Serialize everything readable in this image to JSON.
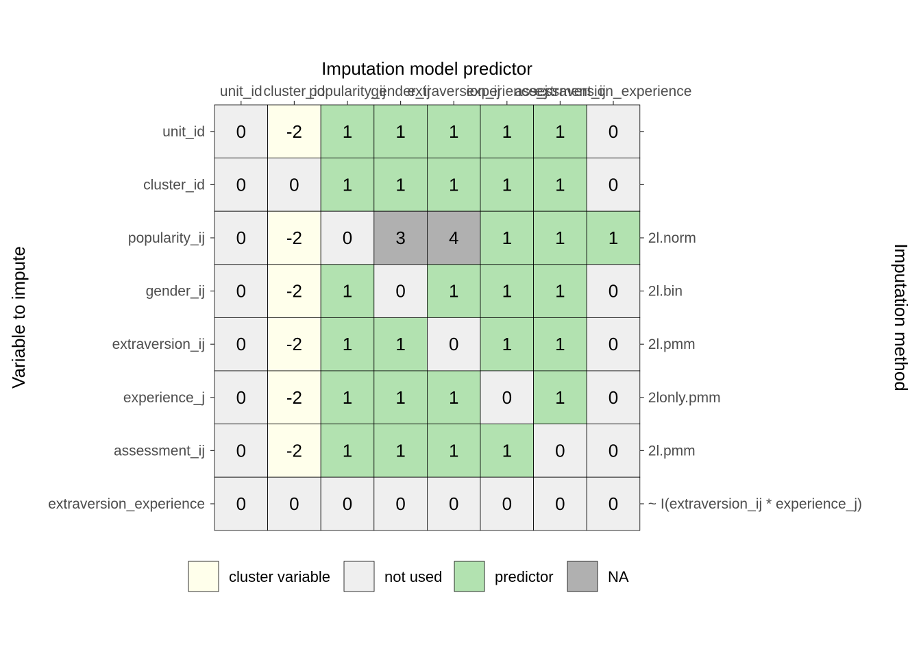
{
  "chart_data": {
    "type": "heatmap",
    "title": "",
    "xlabel": "Imputation model predictor",
    "ylabel": "Variable to impute",
    "secondary_ylabel": "Imputation method",
    "columns": [
      "unit_id",
      "cluster_id",
      "popularity_ij",
      "gender_ij",
      "extraversion_ij",
      "experience_j",
      "assessment_ij",
      "extraversion_experience"
    ],
    "rows": [
      "unit_id",
      "cluster_id",
      "popularity_ij",
      "gender_ij",
      "extraversion_ij",
      "experience_j",
      "assessment_ij",
      "extraversion_experience"
    ],
    "values": [
      [
        0,
        -2,
        1,
        1,
        1,
        1,
        1,
        0
      ],
      [
        0,
        0,
        1,
        1,
        1,
        1,
        1,
        0
      ],
      [
        0,
        -2,
        0,
        3,
        4,
        1,
        1,
        1
      ],
      [
        0,
        -2,
        1,
        0,
        1,
        1,
        1,
        0
      ],
      [
        0,
        -2,
        1,
        1,
        0,
        1,
        1,
        0
      ],
      [
        0,
        -2,
        1,
        1,
        1,
        0,
        1,
        0
      ],
      [
        0,
        -2,
        1,
        1,
        1,
        1,
        0,
        0
      ],
      [
        0,
        0,
        0,
        0,
        0,
        0,
        0,
        0
      ]
    ],
    "methods": [
      "",
      "",
      "2l.norm",
      "2l.bin",
      "2l.pmm",
      "2lonly.pmm",
      "2l.pmm",
      "~ I(extraversion_ij * experience_j)"
    ],
    "legend": [
      {
        "label": "cluster variable",
        "color": "#ffffeb"
      },
      {
        "label": "not used",
        "color": "#efefef"
      },
      {
        "label": "predictor",
        "color": "#b2e2b0"
      },
      {
        "label": "NA",
        "color": "#b0b0b0"
      }
    ],
    "legend_position": "bottom",
    "grid": false
  }
}
